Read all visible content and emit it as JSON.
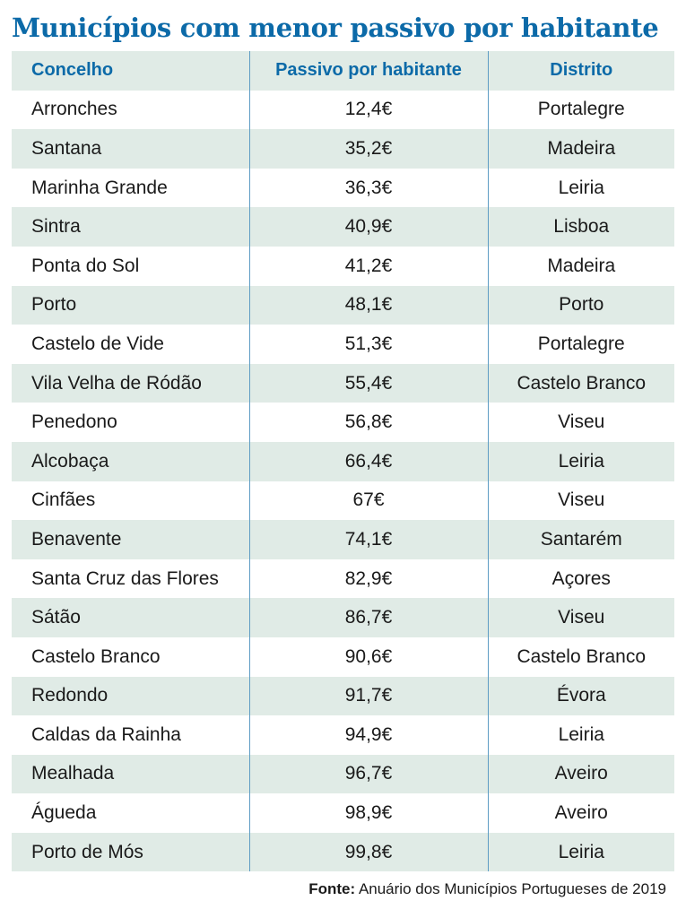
{
  "title": "Municípios com menor passivo por habitante",
  "table": {
    "headers": [
      "Concelho",
      "Passivo por habitante",
      "Distrito"
    ],
    "rows": [
      [
        "Arronches",
        "12,4€",
        "Portalegre"
      ],
      [
        "Santana",
        "35,2€",
        "Madeira"
      ],
      [
        "Marinha Grande",
        "36,3€",
        "Leiria"
      ],
      [
        "Sintra",
        "40,9€",
        "Lisboa"
      ],
      [
        "Ponta do Sol",
        "41,2€",
        "Madeira"
      ],
      [
        "Porto",
        "48,1€",
        "Porto"
      ],
      [
        "Castelo de Vide",
        "51,3€",
        "Portalegre"
      ],
      [
        "Vila Velha de Ródão",
        "55,4€",
        "Castelo Branco"
      ],
      [
        "Penedono",
        "56,8€",
        "Viseu"
      ],
      [
        "Alcobaça",
        "66,4€",
        "Leiria"
      ],
      [
        "Cinfães",
        "67€",
        "Viseu"
      ],
      [
        "Benavente",
        "74,1€",
        "Santarém"
      ],
      [
        "Santa Cruz das Flores",
        "82,9€",
        "Açores"
      ],
      [
        "Sátão",
        "86,7€",
        "Viseu"
      ],
      [
        "Castelo Branco",
        "90,6€",
        "Castelo Branco"
      ],
      [
        "Redondo",
        "91,7€",
        "Évora"
      ],
      [
        "Caldas da Rainha",
        "94,9€",
        "Leiria"
      ],
      [
        "Mealhada",
        "96,7€",
        "Aveiro"
      ],
      [
        "Águeda",
        "98,9€",
        "Aveiro"
      ],
      [
        "Porto de Mós",
        "99,8€",
        "Leiria"
      ]
    ]
  },
  "source": {
    "label": "Fonte:",
    "text": "Anuário dos Municípios Portugueses de 2019"
  },
  "colors": {
    "title": "#0c6aa8",
    "header_text": "#0c6aa8",
    "row_stripe": "#e0ebe6",
    "divider": "#5e9cc4"
  }
}
